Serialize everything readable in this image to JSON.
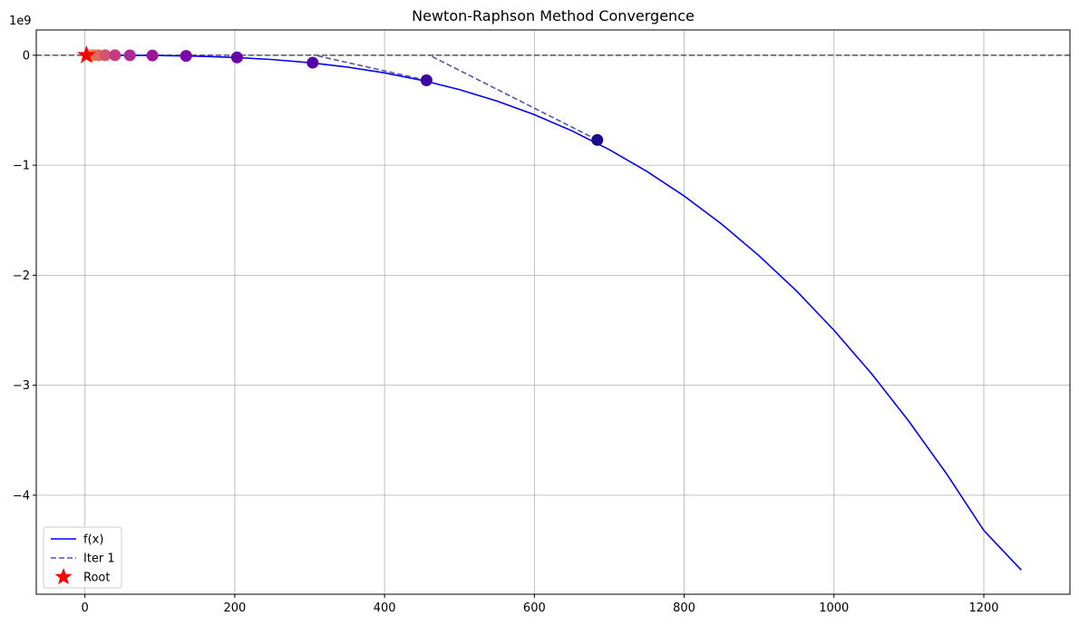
{
  "chart_data": {
    "type": "line",
    "title": "Newton-Raphson Method Convergence",
    "xlabel": "",
    "ylabel": "",
    "y_scale_label": "1e9",
    "xlim": [
      -65,
      1315
    ],
    "ylim": [
      -4.9,
      0.23
    ],
    "x_ticks": [
      0,
      200,
      400,
      600,
      800,
      1000,
      1200
    ],
    "y_ticks": [
      0,
      -1,
      -2,
      -3,
      -4
    ],
    "y_tick_labels": [
      "0",
      "−1",
      "−2",
      "−3",
      "−4"
    ],
    "grid": true,
    "legend_position": "lower-left",
    "curve": {
      "name": "f(x)",
      "color": "#0000ff",
      "x": [
        2,
        50,
        100,
        150,
        200,
        250,
        300,
        350,
        400,
        450,
        500,
        550,
        600,
        650,
        700,
        750,
        800,
        850,
        900,
        950,
        1000,
        1050,
        1100,
        1150,
        1200,
        1250
      ],
      "y": [
        0,
        -0.0003,
        -0.0025,
        -0.0084,
        -0.02,
        -0.039,
        -0.0675,
        -0.107,
        -0.16,
        -0.228,
        -0.3125,
        -0.416,
        -0.54,
        -0.687,
        -0.858,
        -1.055,
        -1.28,
        -1.535,
        -1.823,
        -2.143,
        -2.5,
        -2.894,
        -3.328,
        -3.802,
        -4.32,
        -4.68
      ]
    },
    "tangents": [
      {
        "name": "Iter 1",
        "color": "#5555aa",
        "x": [
          684,
          460
        ],
        "y": [
          -0.77,
          0
        ]
      },
      {
        "name": "",
        "color": "#5555aa",
        "x": [
          456,
          307
        ],
        "y": [
          -0.228,
          0
        ]
      }
    ],
    "zero_line": {
      "y": 0,
      "color": "#555555"
    },
    "iterates": {
      "x": [
        684,
        456,
        304,
        203,
        135,
        90,
        60,
        40,
        27,
        18,
        12,
        8
      ],
      "y": [
        -0.77,
        -0.228,
        -0.0675,
        -0.02,
        -0.006,
        -0.0018,
        -0.0005,
        -0.00015,
        0,
        0,
        0,
        0
      ],
      "colors": [
        "#1a0c8a",
        "#3c06a0",
        "#5502a6",
        "#6a00a8",
        "#7e03a8",
        "#9a179b",
        "#ad2a90",
        "#c43c7f",
        "#d5546d",
        "#e1695e",
        "#ec7e50",
        "#f59443"
      ]
    },
    "root": {
      "name": "Root",
      "x": 2,
      "y": 0,
      "color": "#ff0000"
    },
    "legend": [
      {
        "label": "f(x)",
        "style": "solid",
        "color": "#0000ff"
      },
      {
        "label": "Iter 1",
        "style": "dashed",
        "color": "#5555aa"
      },
      {
        "label": "Root",
        "style": "star",
        "color": "#ff0000"
      }
    ]
  }
}
